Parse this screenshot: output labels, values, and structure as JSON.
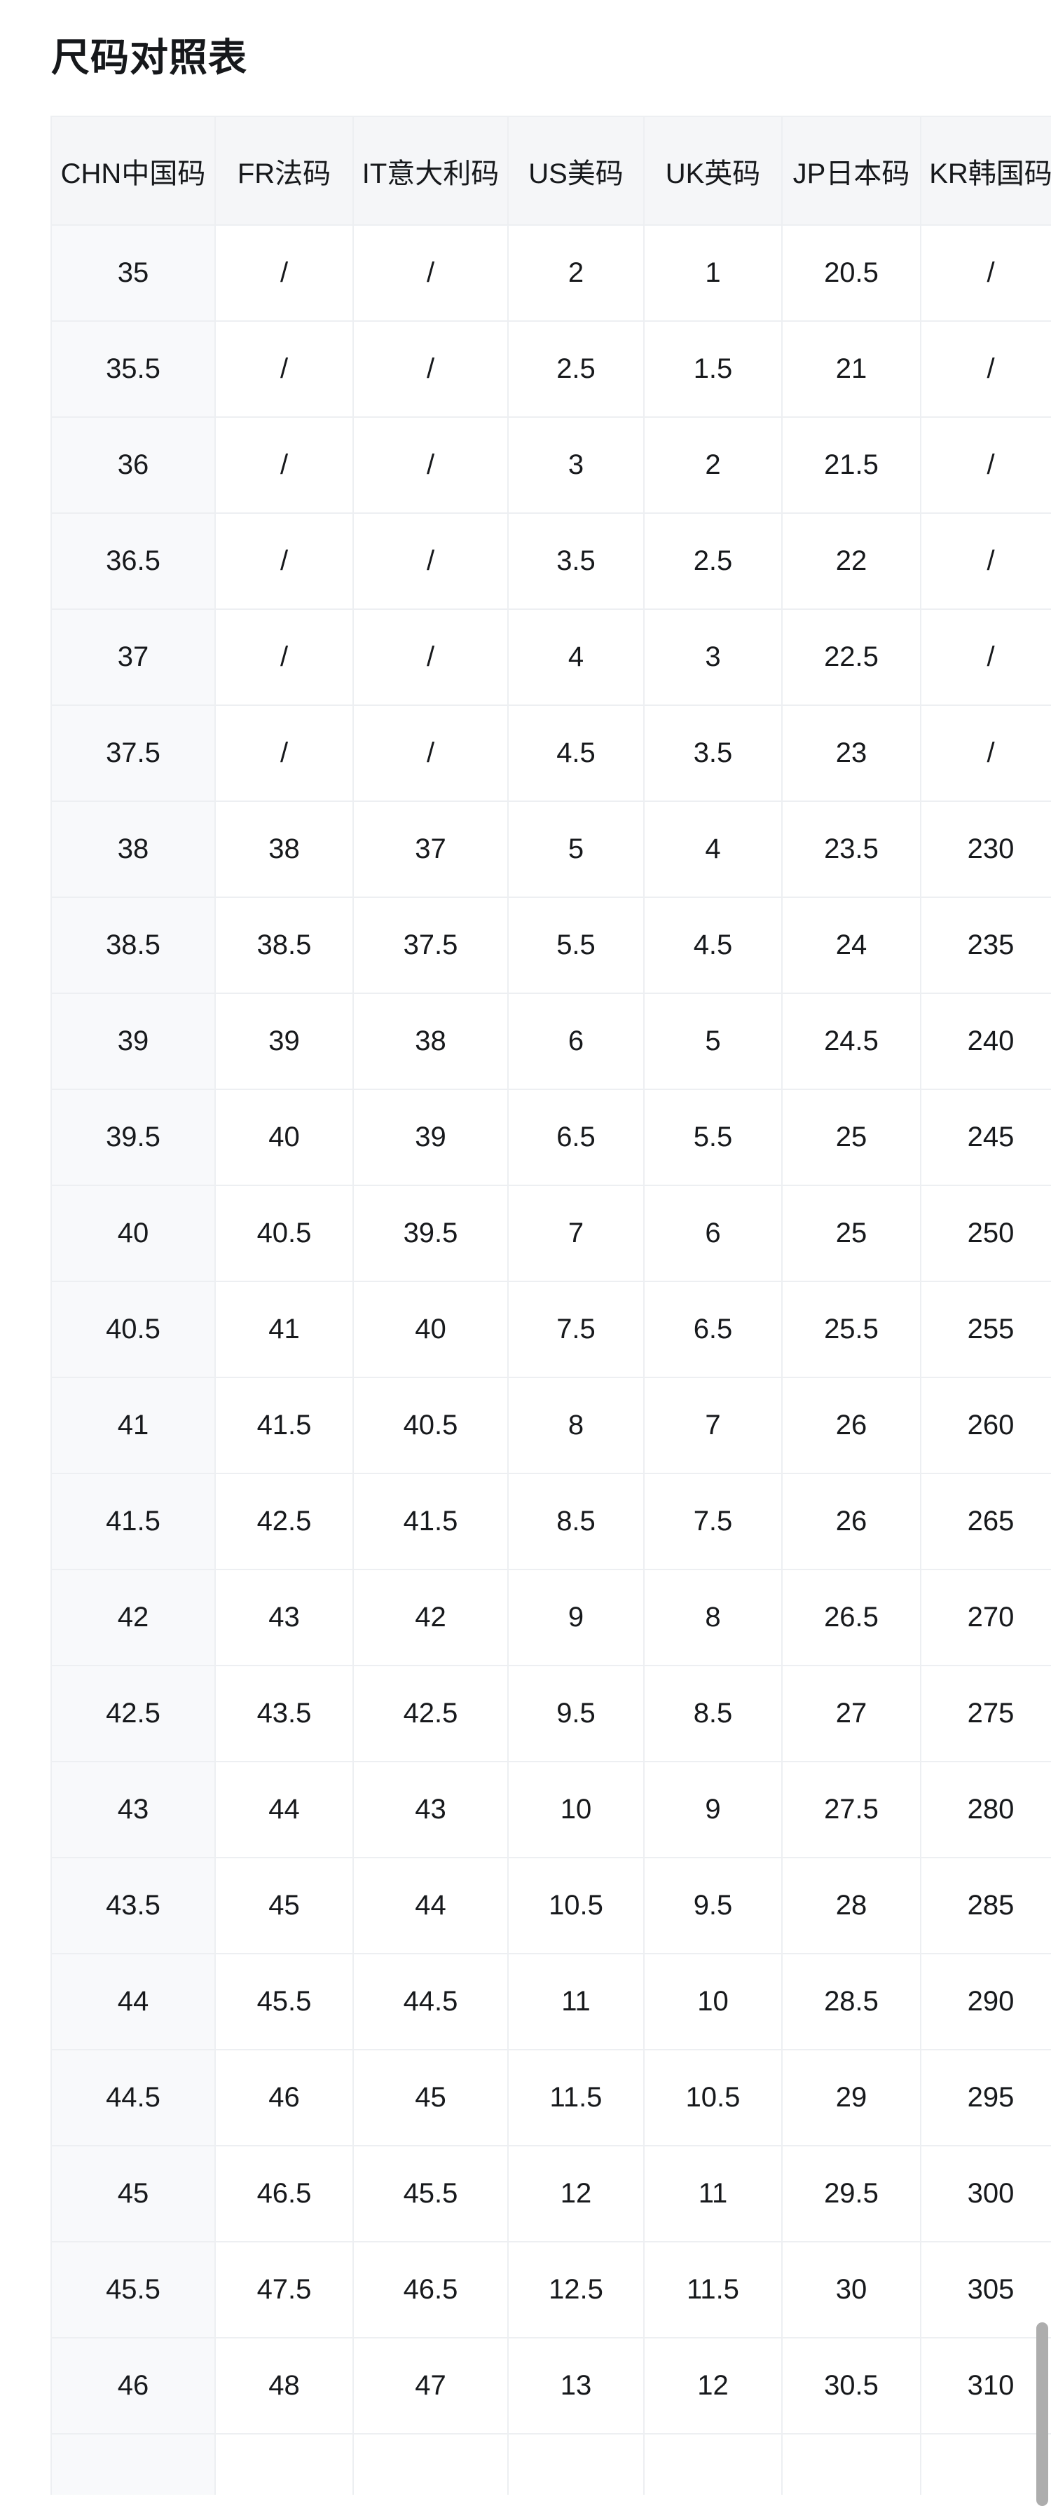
{
  "page": {
    "title": "尺码对照表"
  },
  "table": {
    "columns": [
      "CHN中国码",
      "FR法码",
      "IT意大利码",
      "US美码",
      "UK英码",
      "JP日本码",
      "KR韩国码"
    ],
    "rows": [
      [
        "35",
        "/",
        "/",
        "2",
        "1",
        "20.5",
        "/"
      ],
      [
        "35.5",
        "/",
        "/",
        "2.5",
        "1.5",
        "21",
        "/"
      ],
      [
        "36",
        "/",
        "/",
        "3",
        "2",
        "21.5",
        "/"
      ],
      [
        "36.5",
        "/",
        "/",
        "3.5",
        "2.5",
        "22",
        "/"
      ],
      [
        "37",
        "/",
        "/",
        "4",
        "3",
        "22.5",
        "/"
      ],
      [
        "37.5",
        "/",
        "/",
        "4.5",
        "3.5",
        "23",
        "/"
      ],
      [
        "38",
        "38",
        "37",
        "5",
        "4",
        "23.5",
        "230"
      ],
      [
        "38.5",
        "38.5",
        "37.5",
        "5.5",
        "4.5",
        "24",
        "235"
      ],
      [
        "39",
        "39",
        "38",
        "6",
        "5",
        "24.5",
        "240"
      ],
      [
        "39.5",
        "40",
        "39",
        "6.5",
        "5.5",
        "25",
        "245"
      ],
      [
        "40",
        "40.5",
        "39.5",
        "7",
        "6",
        "25",
        "250"
      ],
      [
        "40.5",
        "41",
        "40",
        "7.5",
        "6.5",
        "25.5",
        "255"
      ],
      [
        "41",
        "41.5",
        "40.5",
        "8",
        "7",
        "26",
        "260"
      ],
      [
        "41.5",
        "42.5",
        "41.5",
        "8.5",
        "7.5",
        "26",
        "265"
      ],
      [
        "42",
        "43",
        "42",
        "9",
        "8",
        "26.5",
        "270"
      ],
      [
        "42.5",
        "43.5",
        "42.5",
        "9.5",
        "8.5",
        "27",
        "275"
      ],
      [
        "43",
        "44",
        "43",
        "10",
        "9",
        "27.5",
        "280"
      ],
      [
        "43.5",
        "45",
        "44",
        "10.5",
        "9.5",
        "28",
        "285"
      ],
      [
        "44",
        "45.5",
        "44.5",
        "11",
        "10",
        "28.5",
        "290"
      ],
      [
        "44.5",
        "46",
        "45",
        "11.5",
        "10.5",
        "29",
        "295"
      ],
      [
        "45",
        "46.5",
        "45.5",
        "12",
        "11",
        "29.5",
        "300"
      ],
      [
        "45.5",
        "47.5",
        "46.5",
        "12.5",
        "11.5",
        "30",
        "305"
      ],
      [
        "46",
        "48",
        "47",
        "13",
        "12",
        "30.5",
        "310"
      ]
    ],
    "partial_row": [
      "",
      "",
      "",
      "",
      "",
      "",
      ""
    ]
  },
  "scrollbar": {
    "thumb_color": "#adadad"
  },
  "colors": {
    "header_bg": "#f5f6f8",
    "first_col_bg": "#f8f9fb",
    "border": "#edeff2",
    "text": "#17191c",
    "title_text": "#16181b"
  }
}
